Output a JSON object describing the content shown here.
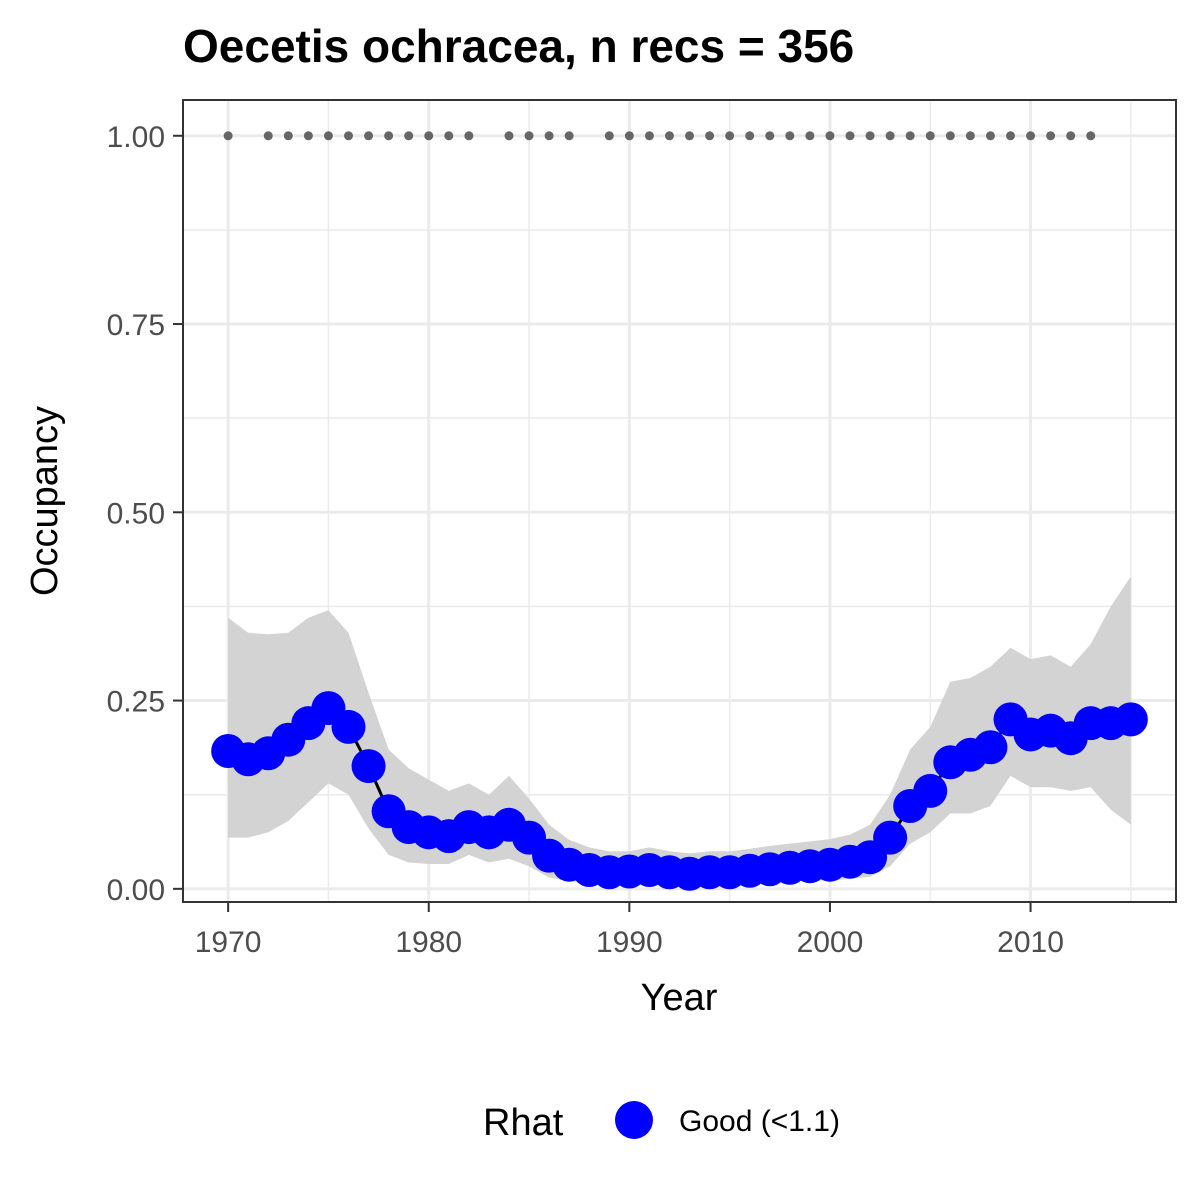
{
  "chart_data": {
    "type": "line",
    "title": "Oecetis ochracea, n recs = 356",
    "xlabel": "Year",
    "ylabel": "Occupancy",
    "xlim": [
      1967.75,
      2017.25
    ],
    "ylim": [
      -0.0175,
      1.0475
    ],
    "x_ticks": [
      1970,
      1980,
      1990,
      2000,
      2010
    ],
    "x_tick_labels": [
      "1970",
      "1980",
      "1990",
      "2000",
      "2010"
    ],
    "y_ticks": [
      0,
      0.25,
      0.5,
      0.75,
      1.0
    ],
    "y_tick_labels": [
      "0.00",
      "0.25",
      "0.50",
      "0.75",
      "1.00"
    ],
    "grid": true,
    "legend": {
      "position": "bottom",
      "title": "Rhat",
      "entries": [
        {
          "label": "Good (<1.1)",
          "color": "#0000ff"
        }
      ]
    },
    "colors": {
      "points": "#0000ff",
      "line": "#000000",
      "ribbon": "#d3d3d3",
      "record_dots": "#666666",
      "panel_border": "#333333",
      "grid": "#ebebeb"
    },
    "series": [
      {
        "type": "line_points",
        "x": [
          1970,
          1971,
          1972,
          1973,
          1974,
          1975,
          1976,
          1977,
          1978,
          1979,
          1980,
          1981,
          1982,
          1983,
          1984,
          1985,
          1986,
          1987,
          1988,
          1989,
          1990,
          1991,
          1992,
          1993,
          1994,
          1995,
          1996,
          1997,
          1998,
          1999,
          2000,
          2001,
          2002,
          2003,
          2004,
          2005,
          2006,
          2007,
          2008,
          2009,
          2010,
          2011,
          2012,
          2013,
          2014,
          2015
        ],
        "y": [
          0.183,
          0.172,
          0.18,
          0.198,
          0.22,
          0.24,
          0.215,
          0.163,
          0.103,
          0.082,
          0.075,
          0.07,
          0.082,
          0.075,
          0.085,
          0.068,
          0.044,
          0.032,
          0.025,
          0.022,
          0.023,
          0.025,
          0.022,
          0.02,
          0.022,
          0.022,
          0.024,
          0.026,
          0.028,
          0.03,
          0.032,
          0.036,
          0.042,
          0.068,
          0.11,
          0.13,
          0.168,
          0.178,
          0.188,
          0.225,
          0.205,
          0.21,
          0.2,
          0.22,
          0.22,
          0.225
        ]
      },
      {
        "type": "ribbon",
        "x": [
          1970,
          1971,
          1972,
          1973,
          1974,
          1975,
          1976,
          1977,
          1978,
          1979,
          1980,
          1981,
          1982,
          1983,
          1984,
          1985,
          1986,
          1987,
          1988,
          1989,
          1990,
          1991,
          1992,
          1993,
          1994,
          1995,
          1996,
          1997,
          1998,
          1999,
          2000,
          2001,
          2002,
          2003,
          2004,
          2005,
          2006,
          2007,
          2008,
          2009,
          2010,
          2011,
          2012,
          2013,
          2014,
          2015
        ],
        "lower": [
          0.068,
          0.068,
          0.075,
          0.09,
          0.115,
          0.14,
          0.125,
          0.08,
          0.045,
          0.035,
          0.033,
          0.033,
          0.045,
          0.035,
          0.04,
          0.03,
          0.015,
          0.01,
          0.008,
          0.007,
          0.007,
          0.008,
          0.007,
          0.006,
          0.007,
          0.007,
          0.008,
          0.009,
          0.01,
          0.011,
          0.011,
          0.013,
          0.016,
          0.03,
          0.06,
          0.075,
          0.1,
          0.1,
          0.11,
          0.15,
          0.135,
          0.135,
          0.13,
          0.135,
          0.105,
          0.085
        ],
        "upper": [
          0.36,
          0.34,
          0.338,
          0.34,
          0.36,
          0.37,
          0.34,
          0.26,
          0.185,
          0.16,
          0.145,
          0.13,
          0.14,
          0.125,
          0.15,
          0.12,
          0.085,
          0.065,
          0.055,
          0.05,
          0.05,
          0.055,
          0.05,
          0.047,
          0.05,
          0.05,
          0.053,
          0.057,
          0.06,
          0.063,
          0.066,
          0.072,
          0.085,
          0.125,
          0.185,
          0.215,
          0.275,
          0.28,
          0.295,
          0.32,
          0.305,
          0.31,
          0.295,
          0.325,
          0.375,
          0.415
        ]
      },
      {
        "type": "record_years",
        "y": 1.0,
        "x": [
          1970,
          1972,
          1973,
          1974,
          1975,
          1976,
          1977,
          1978,
          1979,
          1980,
          1981,
          1982,
          1984,
          1985,
          1986,
          1987,
          1989,
          1990,
          1991,
          1992,
          1993,
          1994,
          1995,
          1996,
          1997,
          1998,
          1999,
          2000,
          2001,
          2002,
          2003,
          2004,
          2005,
          2006,
          2007,
          2008,
          2009,
          2010,
          2011,
          2012,
          2013
        ]
      }
    ]
  }
}
